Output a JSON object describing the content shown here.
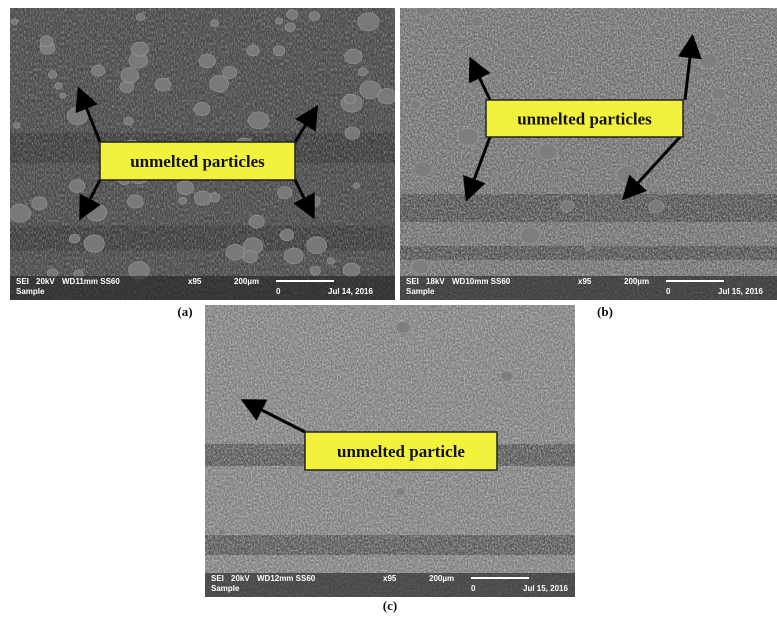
{
  "panels": [
    {
      "caption": "(a)",
      "label": "unmelted particles",
      "info": {
        "mode": "SEI",
        "voltage": "20kV",
        "wd": "WD11mm SS60",
        "mag": "x95",
        "scale": "200µm",
        "sample": "Sample",
        "zero": "0",
        "date": "Jul 14, 2016"
      }
    },
    {
      "caption": "(b)",
      "label": "unmelted particles",
      "info": {
        "mode": "SEI",
        "voltage": "18kV",
        "wd": "WD10mm SS60",
        "mag": "x95",
        "scale": "200µm",
        "sample": "Sample",
        "zero": "0",
        "date": "Jul 15, 2016"
      }
    },
    {
      "caption": "(c)",
      "label": "unmelted particle",
      "info": {
        "mode": "SEI",
        "voltage": "20kV",
        "wd": "WD12mm SS60",
        "mag": "x95",
        "scale": "200µm",
        "sample": "Sample",
        "zero": "0",
        "date": "Jul 15, 2016"
      }
    }
  ]
}
